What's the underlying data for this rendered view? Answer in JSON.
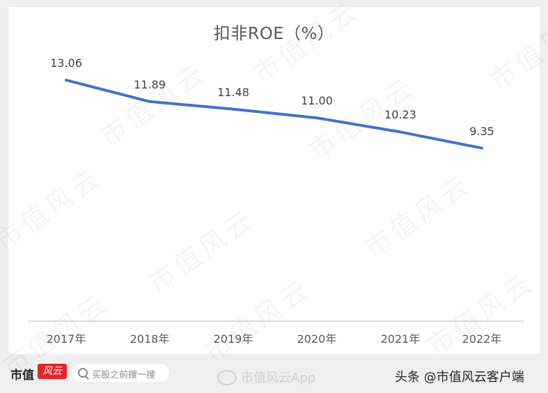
{
  "chart_data": {
    "type": "line",
    "title": "扣非ROE（%）",
    "xlabel": "",
    "ylabel": "",
    "categories": [
      "2017年",
      "2018年",
      "2019年",
      "2020年",
      "2021年",
      "2022年"
    ],
    "series": [
      {
        "name": "扣非ROE（%）",
        "values": [
          13.06,
          11.89,
          11.48,
          11.0,
          10.23,
          9.35
        ],
        "color": "#4472c4"
      }
    ],
    "data_labels": [
      "13.06",
      "11.89",
      "11.48",
      "11.00",
      "10.23",
      "9.35"
    ],
    "grid": false,
    "legend": "none",
    "ylim": [
      0,
      16.5
    ]
  },
  "watermark": {
    "text": "市值风云"
  },
  "footer": {
    "brand_text": "市值",
    "brand_badge": "风云",
    "search_placeholder": "买股之前搜一搜",
    "weibo_text": "市值风云App",
    "toutiao_text": "头条 @市值风云客户端"
  },
  "colors": {
    "line": "#4472c4",
    "axis": "#d9d9d9",
    "text": "#595959",
    "brand_red": "#e0262b"
  }
}
